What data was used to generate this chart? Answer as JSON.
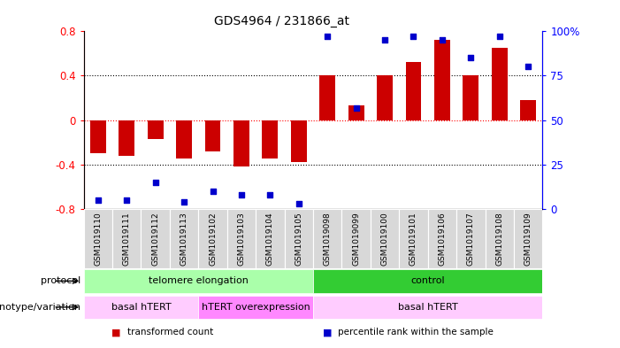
{
  "title": "GDS4964 / 231866_at",
  "samples": [
    "GSM1019110",
    "GSM1019111",
    "GSM1019112",
    "GSM1019113",
    "GSM1019102",
    "GSM1019103",
    "GSM1019104",
    "GSM1019105",
    "GSM1019098",
    "GSM1019099",
    "GSM1019100",
    "GSM1019101",
    "GSM1019106",
    "GSM1019107",
    "GSM1019108",
    "GSM1019109"
  ],
  "bar_values": [
    -0.3,
    -0.32,
    -0.17,
    -0.35,
    -0.28,
    -0.42,
    -0.35,
    -0.38,
    0.4,
    0.13,
    0.4,
    0.52,
    0.72,
    0.4,
    0.65,
    0.18
  ],
  "dot_values": [
    5,
    5,
    15,
    4,
    10,
    8,
    8,
    3,
    97,
    57,
    95,
    97,
    95,
    85,
    97,
    80
  ],
  "bar_color": "#cc0000",
  "dot_color": "#0000cc",
  "ylim": [
    -0.8,
    0.8
  ],
  "y2lim": [
    0,
    100
  ],
  "yticks": [
    -0.8,
    -0.4,
    0.0,
    0.4,
    0.8
  ],
  "y2ticks": [
    0,
    25,
    50,
    75,
    100
  ],
  "y2ticklabels": [
    "0",
    "25",
    "50",
    "75",
    "100%"
  ],
  "hlines": [
    -0.4,
    0.0,
    0.4
  ],
  "hline_colors": [
    "black",
    "red",
    "black"
  ],
  "hline_styles": [
    "dotted",
    "dotted",
    "dotted"
  ],
  "protocol_labels": [
    {
      "text": "telomere elongation",
      "start": 0,
      "end": 8,
      "color": "#aaffaa"
    },
    {
      "text": "control",
      "start": 8,
      "end": 16,
      "color": "#33cc33"
    }
  ],
  "genotype_labels": [
    {
      "text": "basal hTERT",
      "start": 0,
      "end": 4,
      "color": "#ffccff"
    },
    {
      "text": "hTERT overexpression",
      "start": 4,
      "end": 8,
      "color": "#ff88ff"
    },
    {
      "text": "basal hTERT",
      "start": 8,
      "end": 16,
      "color": "#ffccff"
    }
  ],
  "legend_items": [
    {
      "label": "transformed count",
      "color": "#cc0000"
    },
    {
      "label": "percentile rank within the sample",
      "color": "#0000cc"
    }
  ],
  "sample_bg": "#d8d8d8",
  "bar_width": 0.55
}
